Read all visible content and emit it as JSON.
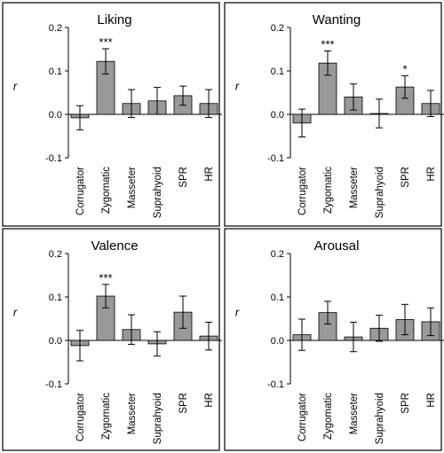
{
  "figure": {
    "colors": {
      "bar": "#999999",
      "frame": "#000000",
      "background": "#ffffff"
    }
  },
  "chart_data": [
    {
      "type": "bar",
      "title": "Liking",
      "ylabel": "r",
      "ylim": [
        -0.1,
        0.2
      ],
      "yticks": [
        "-0.1",
        "0.0",
        "0.1",
        "0.2"
      ],
      "categories": [
        "Corrugator",
        "Zygomatic",
        "Masseter",
        "Suprahyoid",
        "SPR",
        "HR"
      ],
      "values": [
        -0.008,
        0.122,
        0.025,
        0.031,
        0.043,
        0.025
      ],
      "error": [
        0.028,
        0.029,
        0.032,
        0.031,
        0.022,
        0.032
      ],
      "annotations": [
        "",
        "***",
        "",
        "",
        "",
        ""
      ]
    },
    {
      "type": "bar",
      "title": "Wanting",
      "ylabel": "r",
      "ylim": [
        -0.1,
        0.2
      ],
      "yticks": [
        "-0.1",
        "0.0",
        "0.1",
        "0.2"
      ],
      "categories": [
        "Corrugator",
        "Zygomatic",
        "Masseter",
        "Suprahyoid",
        "SPR",
        "HR"
      ],
      "values": [
        -0.02,
        0.118,
        0.04,
        0.002,
        0.063,
        0.025
      ],
      "error": [
        0.032,
        0.028,
        0.03,
        0.033,
        0.026,
        0.03
      ],
      "annotations": [
        "",
        "***",
        "",
        "",
        "*",
        ""
      ]
    },
    {
      "type": "bar",
      "title": "Valence",
      "ylabel": "r",
      "ylim": [
        -0.1,
        0.2
      ],
      "yticks": [
        "-0.1",
        "0.0",
        "0.1",
        "0.2"
      ],
      "categories": [
        "Corrugator",
        "Zygomatic",
        "Masseter",
        "Suprahyoid",
        "SPR",
        "HR"
      ],
      "values": [
        -0.012,
        0.102,
        0.025,
        -0.008,
        0.065,
        0.01
      ],
      "error": [
        0.035,
        0.027,
        0.034,
        0.028,
        0.037,
        0.032
      ],
      "annotations": [
        "",
        "***",
        "",
        "",
        "",
        ""
      ]
    },
    {
      "type": "bar",
      "title": "Arousal",
      "ylabel": "r",
      "ylim": [
        -0.1,
        0.2
      ],
      "yticks": [
        "-0.1",
        "0.0",
        "0.1",
        "0.2"
      ],
      "categories": [
        "Corrugator",
        "Zygomatic",
        "Masseter",
        "Suprahyoid",
        "SPR",
        "HR"
      ],
      "values": [
        0.013,
        0.064,
        0.008,
        0.028,
        0.048,
        0.043
      ],
      "error": [
        0.036,
        0.026,
        0.034,
        0.03,
        0.035,
        0.032
      ],
      "annotations": [
        "",
        "",
        "",
        "",
        "",
        ""
      ]
    }
  ]
}
